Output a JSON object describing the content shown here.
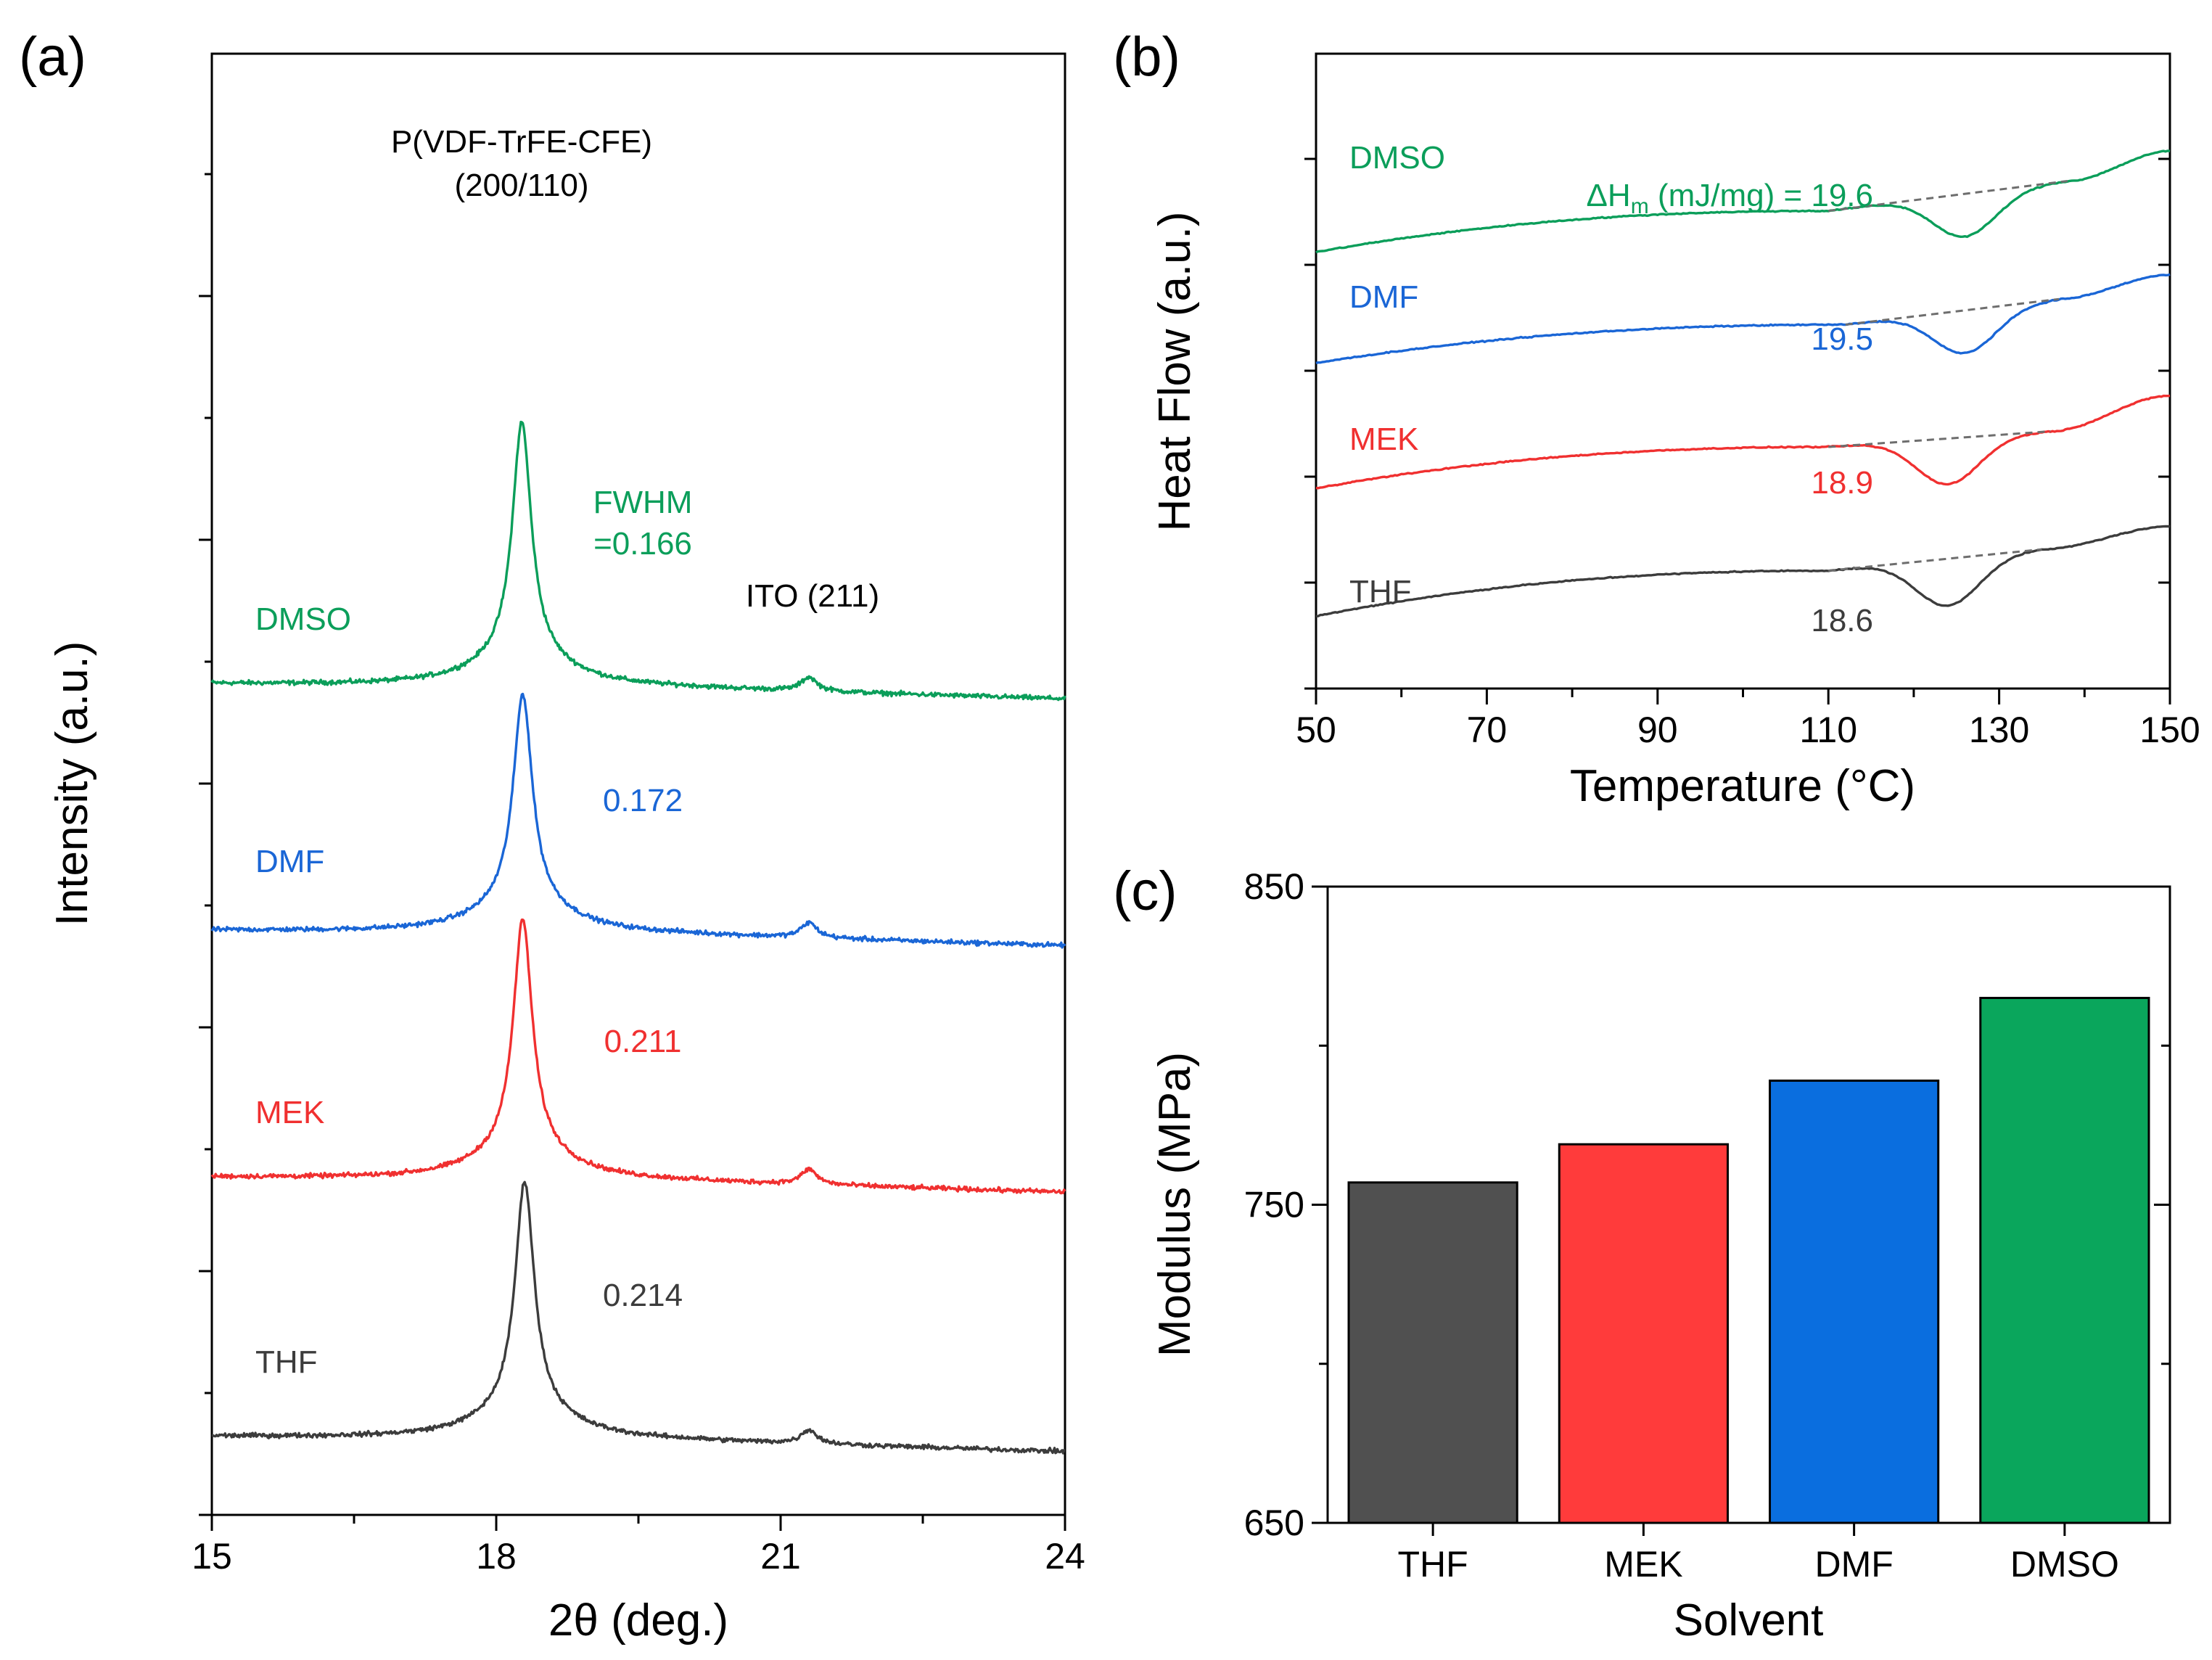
{
  "chart_data": [
    {
      "id": "a",
      "type": "line",
      "panel_label": "(a)",
      "xlabel": "2θ (deg.)",
      "ylabel": "Intensity (a.u.)",
      "xlim": [
        15,
        24
      ],
      "xticks": [
        15,
        18,
        21,
        24
      ],
      "x_tick_labels": [
        "15",
        "18",
        "21",
        "24"
      ],
      "peaks": [
        {
          "label": "P(VDF-TrFE-CFE)",
          "label2": "(200/110)",
          "position": 18.3
        },
        {
          "label": "ITO (211)",
          "position": 21.3
        }
      ],
      "fwhm_label": "FWHM",
      "series": [
        {
          "name": "DMSO",
          "color": "#0b9e5a",
          "fwhm": "=0.166",
          "baseline": 1.1,
          "peak_height": 1.85,
          "peak_center": 18.27,
          "ito_height": 0.11,
          "offset": 3.0
        },
        {
          "name": "DMF",
          "color": "#1a66d6",
          "fwhm": "0.172",
          "baseline": 1.1,
          "peak_height": 1.65,
          "peak_center": 18.28,
          "ito_height": 0.12,
          "offset": 2.0
        },
        {
          "name": "MEK",
          "color": "#f03030",
          "fwhm": "0.211",
          "baseline": 1.1,
          "peak_height": 1.82,
          "peak_center": 18.28,
          "ito_height": 0.12,
          "offset": 1.0
        },
        {
          "name": "THF",
          "color": "#3c3c3c",
          "fwhm": "0.214",
          "baseline": 1.0,
          "peak_height": 1.8,
          "peak_center": 18.3,
          "ito_height": 0.11,
          "offset": 0.0
        }
      ]
    },
    {
      "id": "b",
      "type": "line",
      "panel_label": "(b)",
      "xlabel": "Temperature (°C)",
      "ylabel": "Heat Flow (a.u.)",
      "xlim": [
        50,
        150
      ],
      "xticks": [
        50,
        70,
        90,
        110,
        130,
        150
      ],
      "x_tick_labels": [
        "50",
        "70",
        "90",
        "110",
        "130",
        "150"
      ],
      "enthalpy_prefix": "ΔH",
      "enthalpy_subscript": "m",
      "enthalpy_suffix": " (mJ/mg) = ",
      "series": [
        {
          "name": "DMSO",
          "color": "#0b9e5a",
          "dHm": "19.6",
          "start": 3.38,
          "plateau": 3.67,
          "onset": 110,
          "min_T": 126,
          "depth": 0.3,
          "end_T": 138,
          "end_val": 3.88,
          "final": 4.09
        },
        {
          "name": "DMF",
          "color": "#1a66d6",
          "dHm": "19.5",
          "start": 2.6,
          "plateau": 2.87,
          "onset": 112,
          "min_T": 126,
          "depth": 0.3,
          "end_T": 137,
          "end_val": 3.05,
          "final": 3.22
        },
        {
          "name": "MEK",
          "color": "#f03030",
          "dHm": "18.9",
          "start": 1.72,
          "plateau": 2.01,
          "onset": 110,
          "min_T": 124,
          "depth": 0.32,
          "end_T": 136,
          "end_val": 2.12,
          "final": 2.37
        },
        {
          "name": "THF",
          "color": "#3c3c3c",
          "dHm": "18.6",
          "start": 0.82,
          "plateau": 1.14,
          "onset": 110,
          "min_T": 124,
          "depth": 0.33,
          "end_T": 135,
          "end_val": 1.29,
          "final": 1.45
        }
      ]
    },
    {
      "id": "c",
      "type": "bar",
      "panel_label": "(c)",
      "xlabel": "Solvent",
      "ylabel": "Modulus (MPa)",
      "ylim": [
        650,
        850
      ],
      "yticks": [
        650,
        750,
        850
      ],
      "y_tick_labels": [
        "650",
        "750",
        "850"
      ],
      "categories": [
        "THF",
        "MEK",
        "DMF",
        "DMSO"
      ],
      "values": [
        757,
        769,
        789,
        815
      ],
      "colors": [
        "#505050",
        "#ff3b3b",
        "#0a6edf",
        "#0aa65c"
      ]
    }
  ]
}
